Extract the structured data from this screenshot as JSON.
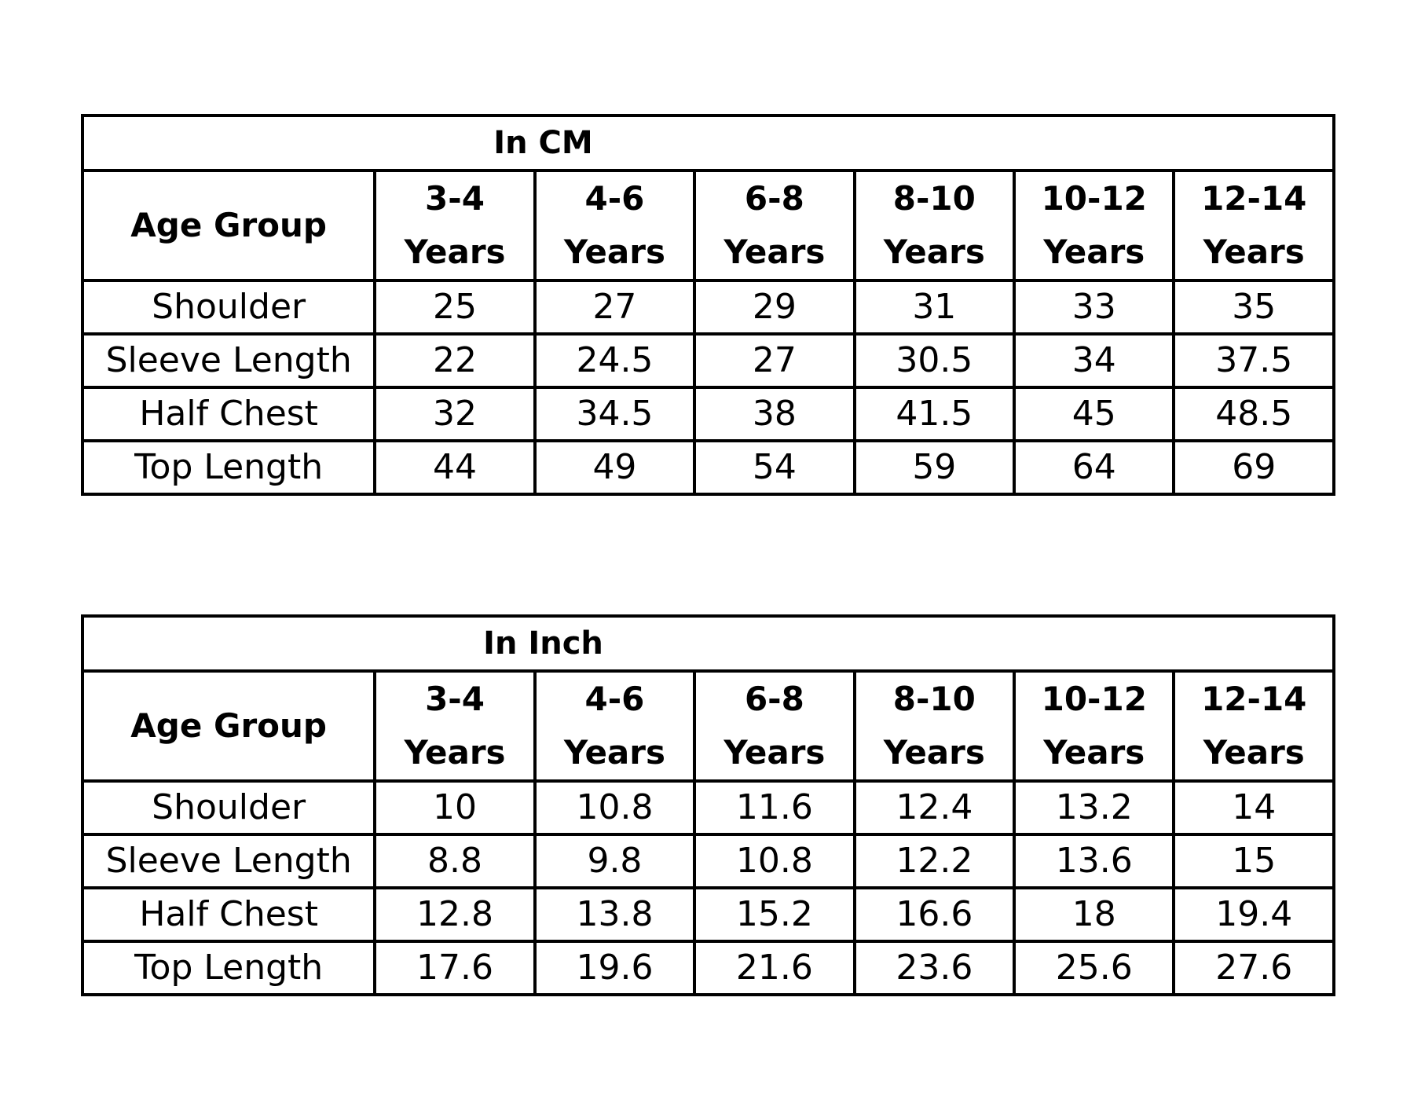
{
  "tables": [
    {
      "caption": "In CM",
      "header_label": "Age Group",
      "age_groups": [
        {
          "range": "3-4",
          "unit": "Years"
        },
        {
          "range": "4-6",
          "unit": "Years"
        },
        {
          "range": "6-8",
          "unit": "Years"
        },
        {
          "range": "8-10",
          "unit": "Years"
        },
        {
          "range": "10-12",
          "unit": "Years"
        },
        {
          "range": "12-14",
          "unit": "Years"
        }
      ],
      "rows": [
        {
          "label": "Shoulder",
          "values": [
            "25",
            "27",
            "29",
            "31",
            "33",
            "35"
          ]
        },
        {
          "label": "Sleeve Length",
          "values": [
            "22",
            "24.5",
            "27",
            "30.5",
            "34",
            "37.5"
          ]
        },
        {
          "label": "Half Chest",
          "values": [
            "32",
            "34.5",
            "38",
            "41.5",
            "45",
            "48.5"
          ]
        },
        {
          "label": "Top Length",
          "values": [
            "44",
            "49",
            "54",
            "59",
            "64",
            "69"
          ]
        }
      ]
    },
    {
      "caption": "In Inch",
      "header_label": "Age Group",
      "age_groups": [
        {
          "range": "3-4",
          "unit": "Years"
        },
        {
          "range": "4-6",
          "unit": "Years"
        },
        {
          "range": "6-8",
          "unit": "Years"
        },
        {
          "range": "8-10",
          "unit": "Years"
        },
        {
          "range": "10-12",
          "unit": "Years"
        },
        {
          "range": "12-14",
          "unit": "Years"
        }
      ],
      "rows": [
        {
          "label": "Shoulder",
          "values": [
            "10",
            "10.8",
            "11.6",
            "12.4",
            "13.2",
            "14"
          ]
        },
        {
          "label": "Sleeve Length",
          "values": [
            "8.8",
            "9.8",
            "10.8",
            "12.2",
            "13.6",
            "15"
          ]
        },
        {
          "label": "Half Chest",
          "values": [
            "12.8",
            "13.8",
            "15.2",
            "16.6",
            "18",
            "19.4"
          ]
        },
        {
          "label": "Top Length",
          "values": [
            "17.6",
            "19.6",
            "21.6",
            "23.6",
            "25.6",
            "27.6"
          ]
        }
      ]
    }
  ]
}
